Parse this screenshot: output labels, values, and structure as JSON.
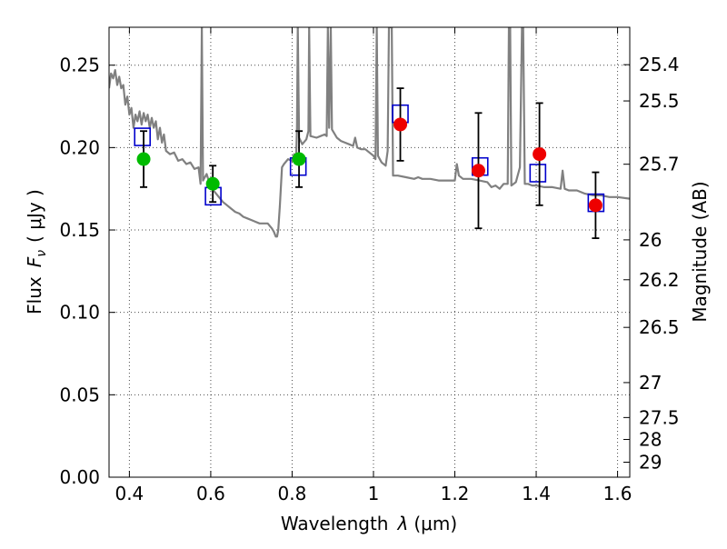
{
  "chart_data": {
    "type": "scatter",
    "xlabel_prefix": "Wavelength",
    "xlabel_symbol": "λ",
    "xlabel_unit": "(μm)",
    "ylabel_prefix": "Flux",
    "ylabel_symbol": "F",
    "ylabel_subscript": "ν",
    "ylabel_unit": "( μJy )",
    "y2label": "Magnitude (AB)",
    "xlim": [
      0.35,
      1.63
    ],
    "ylim": [
      0.0,
      0.273
    ],
    "x_ticks": [
      0.4,
      0.6,
      0.8,
      1.0,
      1.2,
      1.4,
      1.6
    ],
    "x_tick_labels": [
      "0.4",
      "0.6",
      "0.8",
      "1",
      "1.2",
      "1.4",
      "1.6"
    ],
    "y_ticks": [
      0.0,
      0.05,
      0.1,
      0.15,
      0.2,
      0.25
    ],
    "y_tick_labels": [
      "0.00",
      "0.05",
      "0.10",
      "0.15",
      "0.20",
      "0.25"
    ],
    "y2_ticks": [
      {
        "label": "25.4",
        "flux": 0.2503
      },
      {
        "label": "25.5",
        "flux": 0.2283
      },
      {
        "label": "25.7",
        "flux": 0.1899
      },
      {
        "label": "26",
        "flux": 0.144
      },
      {
        "label": "26.2",
        "flux": 0.1198
      },
      {
        "label": "26.5",
        "flux": 0.0909
      },
      {
        "label": "27",
        "flux": 0.0574
      },
      {
        "label": "27.5",
        "flux": 0.0362
      },
      {
        "label": "28",
        "flux": 0.0229
      },
      {
        "label": "29",
        "flux": 0.0091
      }
    ],
    "grid": true,
    "colors": {
      "sed": "#808080",
      "model_box": "#0000cc",
      "green_point": "#00bb00",
      "red_point": "#ee0000",
      "errorbar": "#000000"
    },
    "sed_model": [
      [
        0.35,
        0.236
      ],
      [
        0.355,
        0.245
      ],
      [
        0.36,
        0.242
      ],
      [
        0.365,
        0.247
      ],
      [
        0.37,
        0.238
      ],
      [
        0.375,
        0.243
      ],
      [
        0.38,
        0.236
      ],
      [
        0.385,
        0.238
      ],
      [
        0.39,
        0.226
      ],
      [
        0.395,
        0.231
      ],
      [
        0.4,
        0.22
      ],
      [
        0.405,
        0.224
      ],
      [
        0.41,
        0.212
      ],
      [
        0.415,
        0.22
      ],
      [
        0.42,
        0.216
      ],
      [
        0.425,
        0.222
      ],
      [
        0.43,
        0.214
      ],
      [
        0.435,
        0.221
      ],
      [
        0.44,
        0.216
      ],
      [
        0.445,
        0.22
      ],
      [
        0.45,
        0.212
      ],
      [
        0.455,
        0.218
      ],
      [
        0.46,
        0.212
      ],
      [
        0.465,
        0.216
      ],
      [
        0.47,
        0.205
      ],
      [
        0.475,
        0.212
      ],
      [
        0.48,
        0.203
      ],
      [
        0.485,
        0.208
      ],
      [
        0.49,
        0.198
      ],
      [
        0.5,
        0.196
      ],
      [
        0.51,
        0.197
      ],
      [
        0.52,
        0.192
      ],
      [
        0.53,
        0.193
      ],
      [
        0.54,
        0.19
      ],
      [
        0.55,
        0.191
      ],
      [
        0.56,
        0.187
      ],
      [
        0.57,
        0.188
      ],
      [
        0.575,
        0.178
      ],
      [
        0.578,
        0.273
      ],
      [
        0.581,
        0.18
      ],
      [
        0.59,
        0.184
      ],
      [
        0.6,
        0.176
      ],
      [
        0.61,
        0.173
      ],
      [
        0.62,
        0.17
      ],
      [
        0.63,
        0.167
      ],
      [
        0.64,
        0.165
      ],
      [
        0.65,
        0.163
      ],
      [
        0.66,
        0.161
      ],
      [
        0.67,
        0.16
      ],
      [
        0.68,
        0.158
      ],
      [
        0.69,
        0.157
      ],
      [
        0.7,
        0.156
      ],
      [
        0.71,
        0.155
      ],
      [
        0.72,
        0.154
      ],
      [
        0.73,
        0.154
      ],
      [
        0.74,
        0.154
      ],
      [
        0.75,
        0.151
      ],
      [
        0.755,
        0.149
      ],
      [
        0.76,
        0.146
      ],
      [
        0.763,
        0.146
      ],
      [
        0.766,
        0.15
      ],
      [
        0.77,
        0.165
      ],
      [
        0.775,
        0.188
      ],
      [
        0.78,
        0.19
      ],
      [
        0.79,
        0.193
      ],
      [
        0.8,
        0.192
      ],
      [
        0.805,
        0.196
      ],
      [
        0.81,
        0.194
      ],
      [
        0.812,
        0.212
      ],
      [
        0.814,
        0.273
      ],
      [
        0.817,
        0.206
      ],
      [
        0.825,
        0.202
      ],
      [
        0.835,
        0.205
      ],
      [
        0.84,
        0.21
      ],
      [
        0.842,
        0.273
      ],
      [
        0.845,
        0.207
      ],
      [
        0.86,
        0.206
      ],
      [
        0.87,
        0.207
      ],
      [
        0.88,
        0.208
      ],
      [
        0.885,
        0.207
      ],
      [
        0.888,
        0.273
      ],
      [
        0.891,
        0.212
      ],
      [
        0.895,
        0.273
      ],
      [
        0.898,
        0.211
      ],
      [
        0.91,
        0.206
      ],
      [
        0.92,
        0.204
      ],
      [
        0.93,
        0.203
      ],
      [
        0.94,
        0.202
      ],
      [
        0.95,
        0.201
      ],
      [
        0.955,
        0.206
      ],
      [
        0.96,
        0.2
      ],
      [
        0.97,
        0.199
      ],
      [
        0.98,
        0.199
      ],
      [
        0.99,
        0.197
      ],
      [
        1.0,
        0.195
      ],
      [
        1.005,
        0.193
      ],
      [
        1.008,
        0.273
      ],
      [
        1.011,
        0.195
      ],
      [
        1.02,
        0.191
      ],
      [
        1.03,
        0.189
      ],
      [
        1.035,
        0.198
      ],
      [
        1.038,
        0.273
      ],
      [
        1.04,
        0.273
      ],
      [
        1.042,
        0.273
      ],
      [
        1.045,
        0.273
      ],
      [
        1.048,
        0.183
      ],
      [
        1.06,
        0.183
      ],
      [
        1.08,
        0.182
      ],
      [
        1.1,
        0.181
      ],
      [
        1.11,
        0.182
      ],
      [
        1.12,
        0.181
      ],
      [
        1.14,
        0.181
      ],
      [
        1.16,
        0.18
      ],
      [
        1.18,
        0.18
      ],
      [
        1.2,
        0.18
      ],
      [
        1.205,
        0.19
      ],
      [
        1.21,
        0.183
      ],
      [
        1.22,
        0.181
      ],
      [
        1.24,
        0.181
      ],
      [
        1.26,
        0.18
      ],
      [
        1.28,
        0.179
      ],
      [
        1.29,
        0.176
      ],
      [
        1.3,
        0.177
      ],
      [
        1.31,
        0.175
      ],
      [
        1.32,
        0.178
      ],
      [
        1.33,
        0.178
      ],
      [
        1.333,
        0.273
      ],
      [
        1.336,
        0.273
      ],
      [
        1.339,
        0.177
      ],
      [
        1.35,
        0.179
      ],
      [
        1.36,
        0.188
      ],
      [
        1.365,
        0.273
      ],
      [
        1.368,
        0.273
      ],
      [
        1.372,
        0.178
      ],
      [
        1.38,
        0.178
      ],
      [
        1.39,
        0.177
      ],
      [
        1.4,
        0.177
      ],
      [
        1.42,
        0.176
      ],
      [
        1.44,
        0.176
      ],
      [
        1.46,
        0.175
      ],
      [
        1.465,
        0.186
      ],
      [
        1.47,
        0.175
      ],
      [
        1.48,
        0.174
      ],
      [
        1.5,
        0.174
      ],
      [
        1.52,
        0.172
      ],
      [
        1.54,
        0.171
      ],
      [
        1.56,
        0.171
      ],
      [
        1.58,
        0.17
      ],
      [
        1.6,
        0.17
      ],
      [
        1.63,
        0.169
      ]
    ],
    "model_photometry": [
      {
        "x": 0.432,
        "y": 0.2065
      },
      {
        "x": 0.606,
        "y": 0.1705
      },
      {
        "x": 0.815,
        "y": 0.1885
      },
      {
        "x": 1.066,
        "y": 0.2205
      },
      {
        "x": 1.262,
        "y": 0.1885
      },
      {
        "x": 1.404,
        "y": 0.1845
      },
      {
        "x": 1.547,
        "y": 0.1665
      }
    ],
    "observed_photometry": [
      {
        "x": 0.435,
        "y": 0.193,
        "err_low": 0.017,
        "err_high": 0.017,
        "color": "green"
      },
      {
        "x": 0.605,
        "y": 0.178,
        "err_low": 0.011,
        "err_high": 0.011,
        "color": "green"
      },
      {
        "x": 0.817,
        "y": 0.193,
        "err_low": 0.017,
        "err_high": 0.017,
        "color": "green"
      },
      {
        "x": 1.066,
        "y": 0.214,
        "err_low": 0.022,
        "err_high": 0.022,
        "color": "red"
      },
      {
        "x": 1.258,
        "y": 0.186,
        "err_low": 0.035,
        "err_high": 0.035,
        "color": "red"
      },
      {
        "x": 1.408,
        "y": 0.196,
        "err_low": 0.031,
        "err_high": 0.031,
        "color": "red"
      },
      {
        "x": 1.546,
        "y": 0.165,
        "err_low": 0.02,
        "err_high": 0.02,
        "color": "red"
      }
    ]
  }
}
